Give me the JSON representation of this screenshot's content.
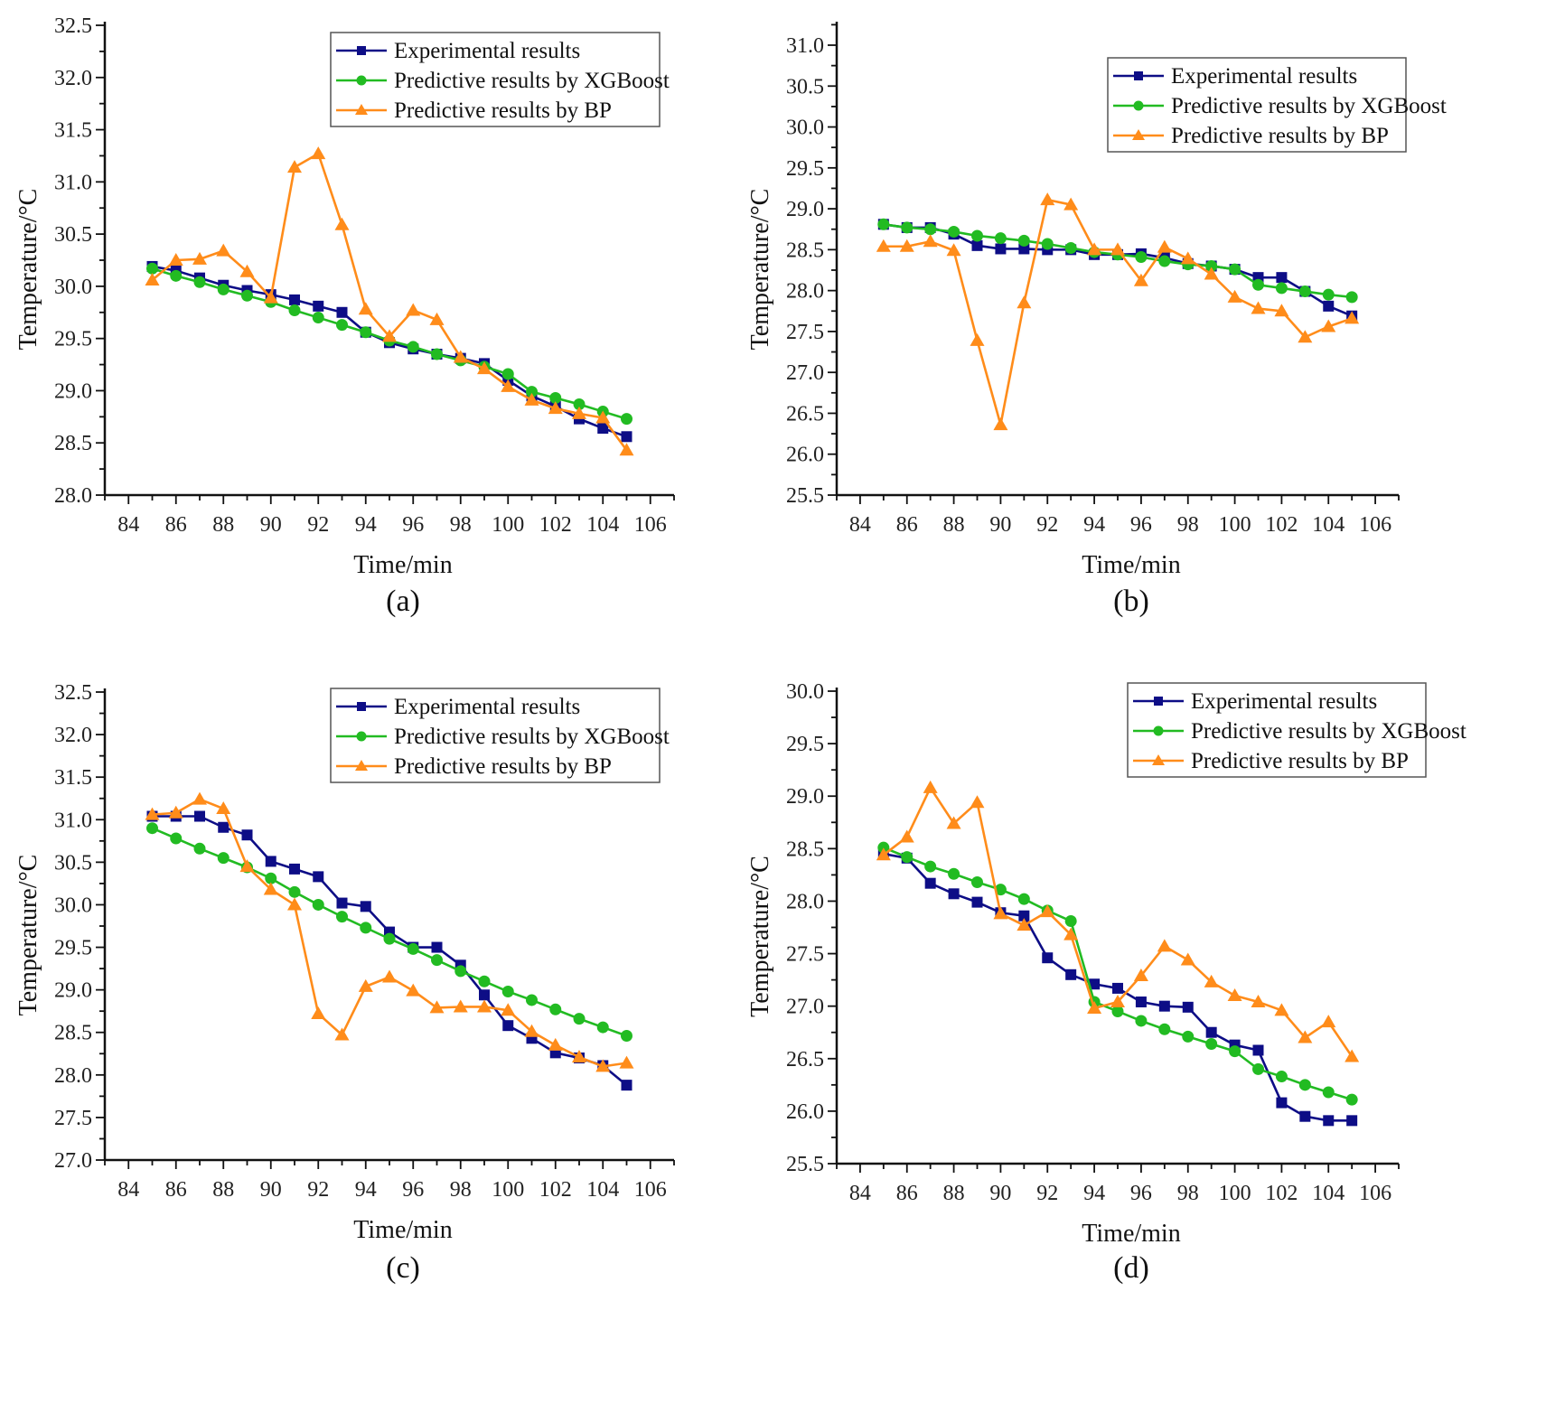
{
  "legend": {
    "items": [
      {
        "name": "Experimental results",
        "color": "#0d0d86",
        "marker": "square"
      },
      {
        "name": "Predictive results by XGBoost",
        "color": "#22bb22",
        "marker": "circle"
      },
      {
        "name": "Predictive results by BP",
        "color": "#ff8c1a",
        "marker": "triangle"
      }
    ]
  },
  "chart_data": [
    {
      "type": "line",
      "caption": "(a)",
      "xlabel": "Time/min",
      "ylabel": "Temperature/°C",
      "xlim": [
        83,
        107
      ],
      "ylim": [
        28.0,
        32.5
      ],
      "xticks": [
        84,
        86,
        88,
        90,
        92,
        94,
        96,
        98,
        100,
        102,
        104,
        106
      ],
      "yticks": [
        28.0,
        28.5,
        29.0,
        29.5,
        30.0,
        30.5,
        31.0,
        31.5,
        32.0,
        32.5
      ],
      "legend_position": "top-right",
      "x": [
        85,
        86,
        87,
        88,
        89,
        90,
        91,
        92,
        93,
        94,
        95,
        96,
        97,
        98,
        99,
        100,
        101,
        102,
        103,
        104,
        105
      ],
      "series": [
        {
          "name": "Experimental results",
          "values": [
            30.19,
            30.15,
            30.08,
            30.01,
            29.96,
            29.92,
            29.87,
            29.81,
            29.75,
            29.56,
            29.46,
            29.4,
            29.35,
            29.31,
            29.26,
            29.1,
            28.95,
            28.85,
            28.73,
            28.64,
            28.56
          ]
        },
        {
          "name": "Predictive results by XGBoost",
          "values": [
            30.17,
            30.1,
            30.04,
            29.97,
            29.91,
            29.85,
            29.77,
            29.7,
            29.63,
            29.56,
            29.48,
            29.42,
            29.35,
            29.29,
            29.23,
            29.16,
            28.99,
            28.93,
            28.87,
            28.8,
            28.73
          ]
        },
        {
          "name": "Predictive results by BP",
          "values": [
            30.06,
            30.25,
            30.26,
            30.34,
            30.14,
            29.89,
            31.14,
            31.27,
            30.59,
            29.78,
            29.52,
            29.77,
            29.68,
            29.32,
            29.21,
            29.04,
            28.91,
            28.83,
            28.78,
            28.74,
            28.43
          ]
        }
      ]
    },
    {
      "type": "line",
      "caption": "(b)",
      "xlabel": "Time/min",
      "ylabel": "Temperature/°C",
      "xlim": [
        83,
        107
      ],
      "ylim": [
        25.5,
        31.25
      ],
      "xticks": [
        84,
        86,
        88,
        90,
        92,
        94,
        96,
        98,
        100,
        102,
        104,
        106
      ],
      "yticks": [
        25.5,
        26.0,
        26.5,
        27.0,
        27.5,
        28.0,
        28.5,
        29.0,
        29.5,
        30.0,
        30.5,
        31.0
      ],
      "legend_position": "top-right",
      "x": [
        85,
        86,
        87,
        88,
        89,
        90,
        91,
        92,
        93,
        94,
        95,
        96,
        97,
        98,
        99,
        100,
        101,
        102,
        103,
        104,
        105
      ],
      "series": [
        {
          "name": "Experimental results",
          "values": [
            28.81,
            28.77,
            28.77,
            28.69,
            28.55,
            28.51,
            28.51,
            28.5,
            28.5,
            28.44,
            28.44,
            28.45,
            28.4,
            28.33,
            28.3,
            28.26,
            28.16,
            28.16,
            27.99,
            27.81,
            27.69
          ]
        },
        {
          "name": "Predictive results by XGBoost",
          "values": [
            28.81,
            28.77,
            28.75,
            28.72,
            28.67,
            28.64,
            28.61,
            28.57,
            28.52,
            28.47,
            28.44,
            28.41,
            28.36,
            28.32,
            28.3,
            28.26,
            28.07,
            28.03,
            27.99,
            27.95,
            27.92
          ]
        },
        {
          "name": "Predictive results by BP",
          "values": [
            28.54,
            28.54,
            28.6,
            28.49,
            27.39,
            26.36,
            27.85,
            29.11,
            29.05,
            28.5,
            28.5,
            28.12,
            28.53,
            28.39,
            28.2,
            27.92,
            27.78,
            27.75,
            27.43,
            27.56,
            27.66
          ]
        }
      ]
    },
    {
      "type": "line",
      "caption": "(c)",
      "xlabel": "Time/min",
      "ylabel": "Temperature/°C",
      "xlim": [
        83,
        107
      ],
      "ylim": [
        27.0,
        32.5
      ],
      "xticks": [
        84,
        86,
        88,
        90,
        92,
        94,
        96,
        98,
        100,
        102,
        104,
        106
      ],
      "yticks": [
        27.0,
        27.5,
        28.0,
        28.5,
        29.0,
        29.5,
        30.0,
        30.5,
        31.0,
        31.5,
        32.0,
        32.5
      ],
      "legend_position": "top-right",
      "x": [
        85,
        86,
        87,
        88,
        89,
        90,
        91,
        92,
        93,
        94,
        95,
        96,
        97,
        98,
        99,
        100,
        101,
        102,
        103,
        104,
        105
      ],
      "series": [
        {
          "name": "Experimental results",
          "values": [
            31.04,
            31.04,
            31.04,
            30.91,
            30.82,
            30.51,
            30.42,
            30.33,
            30.02,
            29.98,
            29.68,
            29.5,
            29.5,
            29.29,
            28.94,
            28.58,
            28.43,
            28.26,
            28.2,
            28.11,
            27.88
          ]
        },
        {
          "name": "Predictive results by XGBoost",
          "values": [
            30.9,
            30.78,
            30.66,
            30.55,
            30.44,
            30.31,
            30.15,
            30.0,
            29.86,
            29.73,
            29.6,
            29.48,
            29.35,
            29.22,
            29.1,
            28.98,
            28.88,
            28.77,
            28.66,
            28.56,
            28.46
          ]
        },
        {
          "name": "Predictive results by BP",
          "values": [
            31.06,
            31.08,
            31.24,
            31.13,
            30.45,
            30.18,
            30.0,
            28.72,
            28.47,
            29.04,
            29.15,
            28.99,
            28.79,
            28.8,
            28.8,
            28.76,
            28.51,
            28.35,
            28.21,
            28.1,
            28.14
          ]
        }
      ]
    },
    {
      "type": "line",
      "caption": "(d)",
      "xlabel": "Time/min",
      "ylabel": "Temperature/°C",
      "xlim": [
        83,
        107
      ],
      "ylim": [
        25.5,
        30.0
      ],
      "xticks": [
        84,
        86,
        88,
        90,
        92,
        94,
        96,
        98,
        100,
        102,
        104,
        106
      ],
      "yticks": [
        25.5,
        26.0,
        26.5,
        27.0,
        27.5,
        28.0,
        28.5,
        29.0,
        29.5,
        30.0
      ],
      "legend_position": "top-right",
      "x": [
        85,
        86,
        87,
        88,
        89,
        90,
        91,
        92,
        93,
        94,
        95,
        96,
        97,
        98,
        99,
        100,
        101,
        102,
        103,
        104,
        105
      ],
      "series": [
        {
          "name": "Experimental results",
          "values": [
            28.45,
            28.41,
            28.17,
            28.07,
            27.99,
            27.89,
            27.86,
            27.46,
            27.3,
            27.21,
            27.17,
            27.04,
            27.0,
            26.99,
            26.75,
            26.63,
            26.58,
            26.08,
            25.95,
            25.91,
            25.91
          ]
        },
        {
          "name": "Predictive results by XGBoost",
          "values": [
            28.51,
            28.42,
            28.33,
            28.26,
            28.18,
            28.11,
            28.02,
            27.91,
            27.81,
            27.04,
            26.95,
            26.86,
            26.78,
            26.71,
            26.64,
            26.57,
            26.4,
            26.33,
            26.25,
            26.18,
            26.11
          ]
        },
        {
          "name": "Predictive results by BP",
          "values": [
            28.44,
            28.61,
            29.08,
            28.74,
            28.94,
            27.88,
            27.77,
            27.9,
            27.68,
            26.98,
            27.04,
            27.29,
            27.57,
            27.44,
            27.23,
            27.1,
            27.04,
            26.96,
            26.7,
            26.85,
            26.52
          ]
        }
      ]
    }
  ]
}
